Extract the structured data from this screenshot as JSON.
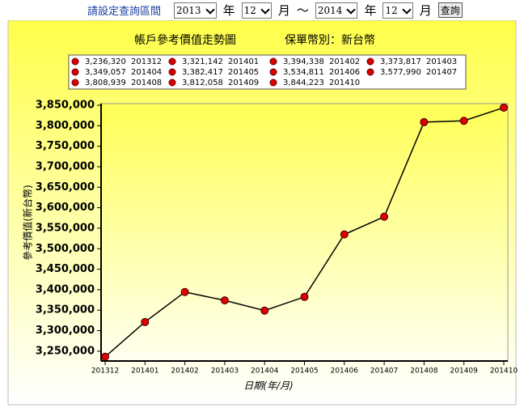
{
  "query": {
    "label": "請設定查詢區間",
    "start_year": "2013",
    "year_unit": "年",
    "start_month": "12",
    "month_unit": "月",
    "range_sep": "～",
    "end_year": "2014",
    "end_month": "12",
    "button": "查詢"
  },
  "chart_data": {
    "type": "line",
    "title": "帳戶參考價值走勢圖",
    "subtitle": "保單幣別：新台幣",
    "x_label": "日期(年/月)",
    "y_label": "參考價值(新台幣)",
    "categories": [
      "201312",
      "201401",
      "201402",
      "201403",
      "201404",
      "201405",
      "201406",
      "201407",
      "201408",
      "201409",
      "201410"
    ],
    "values": [
      3236320,
      3321142,
      3394338,
      3373817,
      3349057,
      3382417,
      3534811,
      3577990,
      3808939,
      3812058,
      3844223
    ],
    "value_labels": [
      "3,236,320",
      "3,321,142",
      "3,394,338",
      "3,373,817",
      "3,349,057",
      "3,382,417",
      "3,534,811",
      "3,577,990",
      "3,808,939",
      "3,812,058",
      "3,844,223"
    ],
    "line_color": "#000000",
    "marker_color": "#dd0000",
    "ylim": [
      3226000,
      3854000
    ],
    "yticks": [
      {
        "value": 3250000,
        "label": "3,250,000"
      },
      {
        "value": 3300000,
        "label": "3,300,000"
      },
      {
        "value": 3350000,
        "label": "3,350,000"
      },
      {
        "value": 3400000,
        "label": "3,400,000"
      },
      {
        "value": 3450000,
        "label": "3,450,000"
      },
      {
        "value": 3500000,
        "label": "3,500,000"
      },
      {
        "value": 3550000,
        "label": "3,550,000"
      },
      {
        "value": 3600000,
        "label": "3,600,000"
      },
      {
        "value": 3650000,
        "label": "3,650,000"
      },
      {
        "value": 3700000,
        "label": "3,700,000"
      },
      {
        "value": 3750000,
        "label": "3,750,000"
      },
      {
        "value": 3800000,
        "label": "3,800,000"
      },
      {
        "value": 3850000,
        "label": "3,850,000"
      }
    ],
    "grid": false,
    "legend": "top"
  }
}
